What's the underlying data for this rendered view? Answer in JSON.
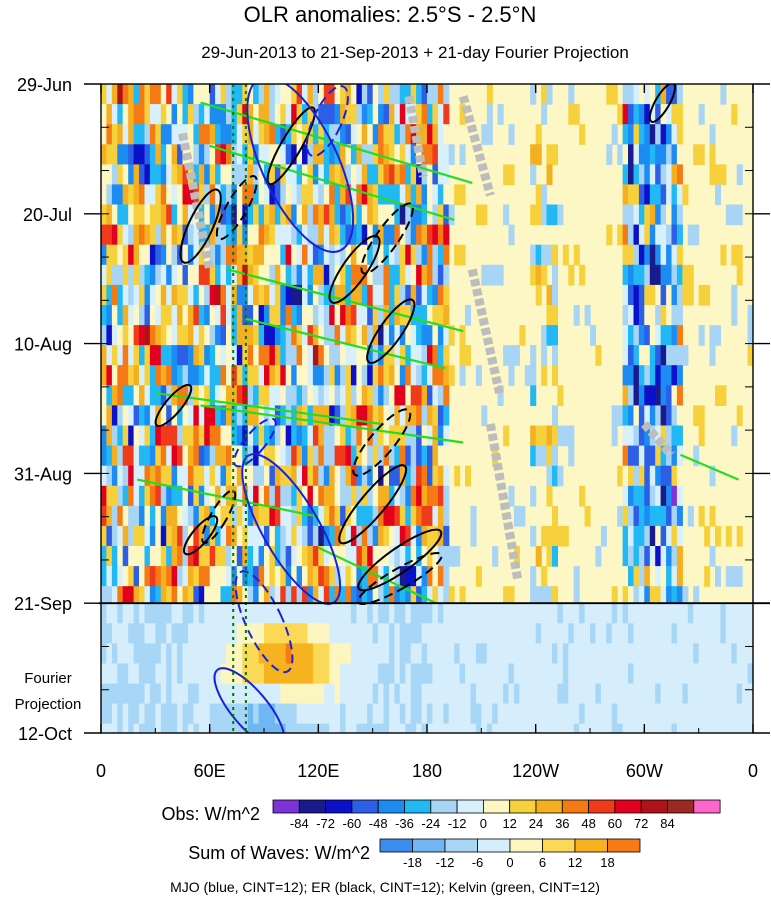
{
  "chart_data": {
    "type": "heatmap",
    "title": "OLR anomalies: 2.5°S - 2.5°N",
    "subtitle": "29-Jun-2013 to 21-Sep-2013 + 21-day Fourier Projection",
    "x_ticks": [
      "0",
      "60E",
      "120E",
      "180",
      "120W",
      "60W",
      "0"
    ],
    "x_tick_values": [
      0,
      60,
      120,
      180,
      240,
      300,
      360
    ],
    "xlim": [
      0,
      360
    ],
    "y_ticks": [
      "29-Jun",
      "20-Jul",
      "10-Aug",
      "31-Aug",
      "21-Sep",
      "12-Oct"
    ],
    "y_tick_days": [
      0,
      21,
      42,
      63,
      84,
      105
    ],
    "ylim": [
      0,
      105
    ],
    "projection_start_day": 84,
    "projection_label_line1": "Fourier",
    "projection_label_line2": "Projection",
    "reference_lines_deg": [
      73,
      80
    ],
    "obs_label": "Obs: W/m^2",
    "obs_levels": [
      "-84",
      "-72",
      "-60",
      "-48",
      "-36",
      "-24",
      "-12",
      "0",
      "12",
      "24",
      "36",
      "48",
      "60",
      "72",
      "84"
    ],
    "obs_colors": [
      "#7d33d9",
      "#1a1a8c",
      "#0b10c9",
      "#2d5ee6",
      "#1c8cf2",
      "#21b8f5",
      "#a8d4f5",
      "#d7f0fb",
      "#fcf7c4",
      "#f7d13c",
      "#f5b021",
      "#f57a14",
      "#ef3a1b",
      "#e3001c",
      "#b01317",
      "#9a2a22",
      "#ff66cc"
    ],
    "waves_label": "Sum of Waves: W/m^2",
    "waves_levels": [
      "-18",
      "-12",
      "-6",
      "0",
      "6",
      "12",
      "18"
    ],
    "waves_colors": [
      "#3b8ef0",
      "#6fb6f2",
      "#a8d6f7",
      "#d6eefb",
      "#fcf5c0",
      "#fbd855",
      "#f7b31f",
      "#f77a15"
    ],
    "footer": "MJO (blue, CINT=12); ER (black, CINT=12); Kelvin (green, CINT=12)",
    "contour_colors": {
      "mjo": "#1a22d6",
      "er": "#000000",
      "kelvin": "#22dd22"
    },
    "missing_color": "#bdbdbd"
  }
}
